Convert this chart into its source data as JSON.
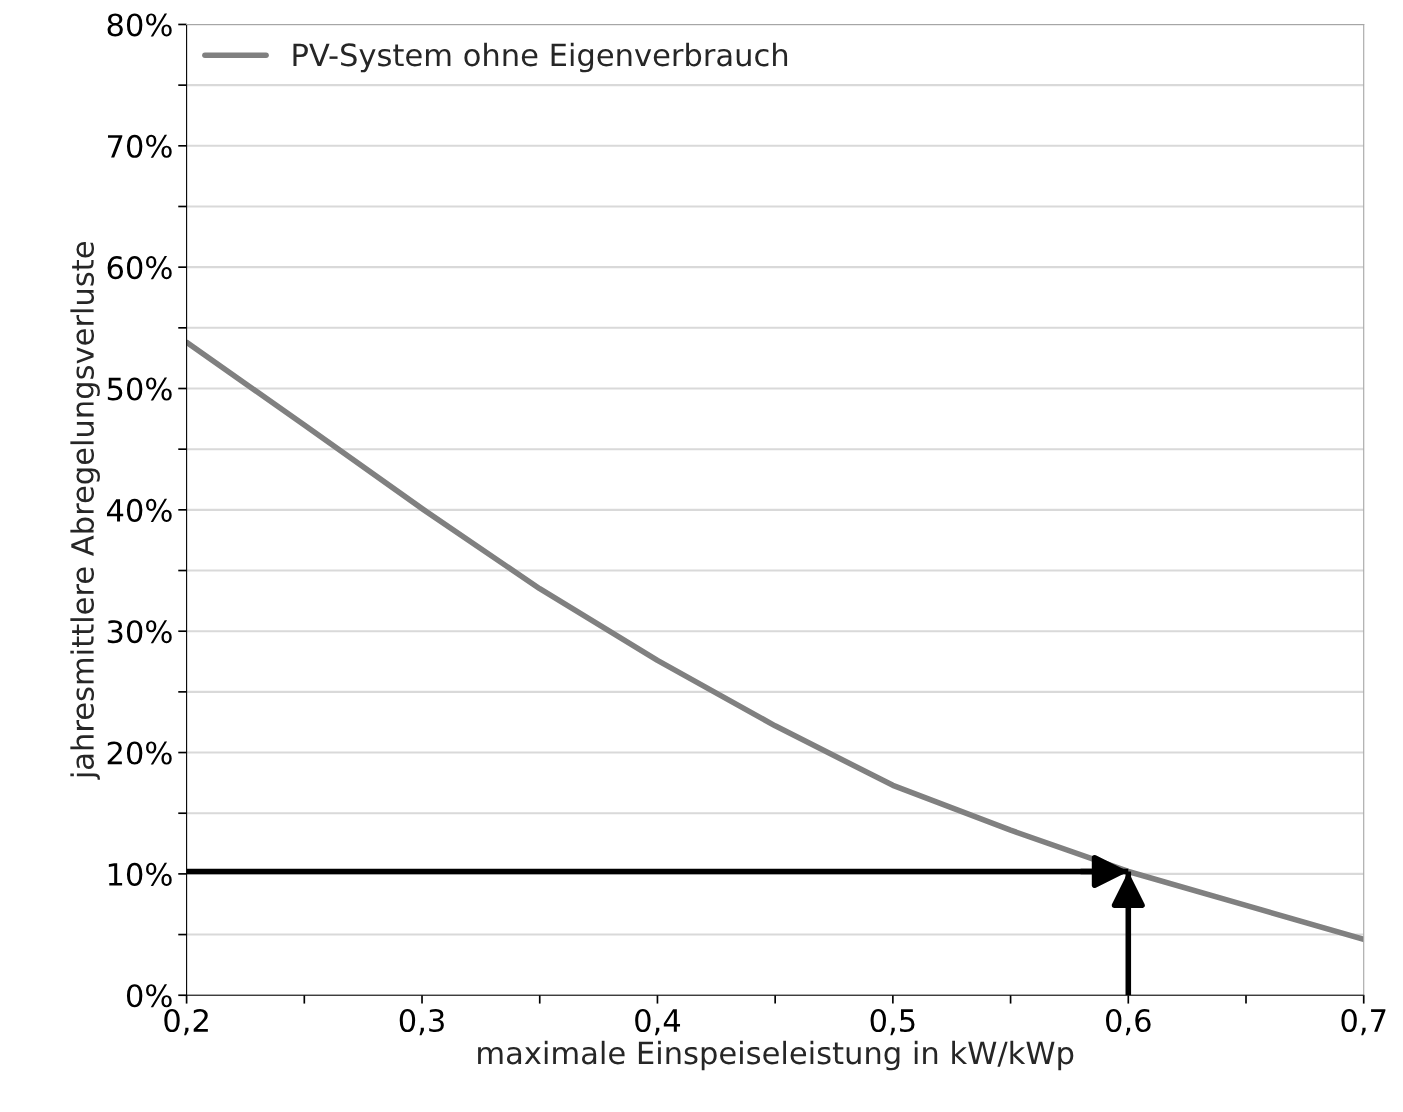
{
  "chart_data": {
    "type": "line",
    "xlabel": "maximale Einspeiseleistung in kW/kWp",
    "ylabel": "jahresmittlere Abregelungsverluste",
    "x": [
      0.2,
      0.25,
      0.3,
      0.35,
      0.4,
      0.45,
      0.5,
      0.55,
      0.6,
      0.65,
      0.7
    ],
    "series": [
      {
        "name": "PV-System ohne Eigenverbrauch",
        "color": "#808080",
        "values": [
          53.8,
          47,
          40.1,
          33.5,
          27.6,
          22.2,
          17.3,
          13.6,
          10.2,
          7.4,
          4.6
        ]
      }
    ],
    "xlim": [
      0.2,
      0.7
    ],
    "ylim": [
      0,
      80
    ],
    "xticks": [
      {
        "value": 0.2,
        "label": "0,2"
      },
      {
        "value": 0.25,
        "label": null
      },
      {
        "value": 0.3,
        "label": "0,3"
      },
      {
        "value": 0.35,
        "label": null
      },
      {
        "value": 0.4,
        "label": "0,4"
      },
      {
        "value": 0.45,
        "label": null
      },
      {
        "value": 0.5,
        "label": "0,5"
      },
      {
        "value": 0.55,
        "label": null
      },
      {
        "value": 0.6,
        "label": "0,6"
      },
      {
        "value": 0.65,
        "label": null
      },
      {
        "value": 0.7,
        "label": "0,7"
      }
    ],
    "yticks": [
      {
        "value": 0,
        "label": "0%"
      },
      {
        "value": 5,
        "label": null
      },
      {
        "value": 10,
        "label": "10%"
      },
      {
        "value": 15,
        "label": null
      },
      {
        "value": 20,
        "label": "20%"
      },
      {
        "value": 25,
        "label": null
      },
      {
        "value": 30,
        "label": "30%"
      },
      {
        "value": 35,
        "label": null
      },
      {
        "value": 40,
        "label": "40%"
      },
      {
        "value": 45,
        "label": null
      },
      {
        "value": 50,
        "label": "50%"
      },
      {
        "value": 55,
        "label": null
      },
      {
        "value": 60,
        "label": "60%"
      },
      {
        "value": 65,
        "label": null
      },
      {
        "value": 70,
        "label": "70%"
      },
      {
        "value": 75,
        "label": null
      },
      {
        "value": 80,
        "label": "80%"
      }
    ],
    "ref_lines": [
      {
        "axis": "y",
        "value": 10.2,
        "color": "#000000"
      },
      {
        "axis": "x",
        "value": 0.6,
        "color": "#000000"
      }
    ],
    "grid": "y",
    "legend": "top left",
    "marker": "none",
    "line_style": "solid"
  }
}
